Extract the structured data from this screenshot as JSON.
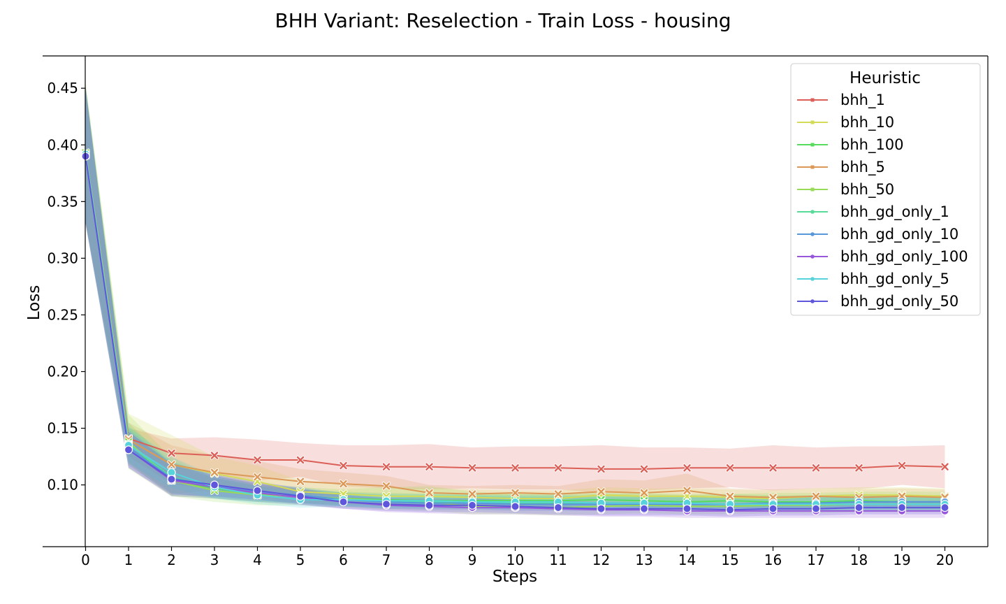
{
  "chart_data": {
    "type": "line",
    "title": "BHH Variant: Reselection - Train Loss - housing",
    "xlabel": "Steps",
    "ylabel": "Loss",
    "x": [
      0,
      1,
      2,
      3,
      4,
      5,
      6,
      7,
      8,
      9,
      10,
      11,
      12,
      13,
      14,
      15,
      16,
      17,
      18,
      19,
      20
    ],
    "xlim": [
      -1,
      21.0
    ],
    "ylim": [
      0.0455,
      0.4785
    ],
    "xticks": [
      0,
      1,
      2,
      3,
      4,
      5,
      6,
      7,
      8,
      9,
      10,
      11,
      12,
      13,
      14,
      15,
      16,
      17,
      18,
      19,
      20
    ],
    "yticks": [
      0.1,
      0.15,
      0.2,
      0.25,
      0.3,
      0.35,
      0.4,
      0.45
    ],
    "legend": {
      "title": "Heuristic",
      "placement": "top-right"
    },
    "grid": false,
    "series": [
      {
        "name": "bhh_1",
        "color": "#db5f57",
        "marker": "x",
        "values": [
          0.392,
          0.141,
          0.128,
          0.126,
          0.122,
          0.122,
          0.117,
          0.116,
          0.116,
          0.115,
          0.115,
          0.115,
          0.114,
          0.114,
          0.115,
          0.115,
          0.115,
          0.115,
          0.115,
          0.117,
          0.116
        ],
        "upper": [
          0.452,
          0.15,
          0.141,
          0.142,
          0.14,
          0.137,
          0.135,
          0.135,
          0.136,
          0.133,
          0.134,
          0.134,
          0.135,
          0.133,
          0.133,
          0.132,
          0.135,
          0.133,
          0.134,
          0.134,
          0.135
        ],
        "lower": [
          0.332,
          0.132,
          0.115,
          0.11,
          0.104,
          0.107,
          0.099,
          0.097,
          0.096,
          0.097,
          0.096,
          0.096,
          0.093,
          0.095,
          0.097,
          0.098,
          0.095,
          0.097,
          0.096,
          0.1,
          0.097
        ]
      },
      {
        "name": "bhh_10",
        "color": "#d3db57",
        "marker": "x",
        "values": [
          0.393,
          0.14,
          0.118,
          0.11,
          0.103,
          0.094,
          0.092,
          0.09,
          0.09,
          0.089,
          0.088,
          0.088,
          0.091,
          0.09,
          0.09,
          0.089,
          0.088,
          0.09,
          0.091,
          0.091,
          0.09
        ],
        "upper": [
          0.453,
          0.163,
          0.144,
          0.125,
          0.117,
          0.104,
          0.101,
          0.098,
          0.097,
          0.096,
          0.095,
          0.095,
          0.098,
          0.097,
          0.097,
          0.096,
          0.095,
          0.097,
          0.098,
          0.098,
          0.097
        ],
        "lower": [
          0.333,
          0.118,
          0.092,
          0.095,
          0.089,
          0.084,
          0.083,
          0.082,
          0.083,
          0.082,
          0.081,
          0.081,
          0.084,
          0.083,
          0.083,
          0.082,
          0.081,
          0.083,
          0.084,
          0.084,
          0.083
        ]
      },
      {
        "name": "bhh_100",
        "color": "#57db5f",
        "marker": "x",
        "values": [
          0.392,
          0.137,
          0.104,
          0.097,
          0.092,
          0.09,
          0.088,
          0.087,
          0.086,
          0.086,
          0.086,
          0.086,
          0.087,
          0.086,
          0.085,
          0.086,
          0.085,
          0.085,
          0.086,
          0.085,
          0.085
        ],
        "upper": [
          0.452,
          0.155,
          0.118,
          0.106,
          0.099,
          0.096,
          0.094,
          0.093,
          0.092,
          0.092,
          0.092,
          0.092,
          0.093,
          0.092,
          0.091,
          0.092,
          0.091,
          0.091,
          0.092,
          0.091,
          0.091
        ],
        "lower": [
          0.332,
          0.119,
          0.09,
          0.088,
          0.085,
          0.084,
          0.082,
          0.081,
          0.08,
          0.08,
          0.08,
          0.08,
          0.081,
          0.08,
          0.079,
          0.08,
          0.079,
          0.079,
          0.08,
          0.079,
          0.079
        ]
      },
      {
        "name": "bhh_5",
        "color": "#db9857",
        "marker": "x",
        "values": [
          0.391,
          0.14,
          0.118,
          0.111,
          0.107,
          0.103,
          0.101,
          0.099,
          0.093,
          0.092,
          0.093,
          0.092,
          0.094,
          0.093,
          0.095,
          0.09,
          0.089,
          0.09,
          0.089,
          0.09,
          0.089
        ],
        "upper": [
          0.451,
          0.155,
          0.135,
          0.126,
          0.121,
          0.114,
          0.111,
          0.108,
          0.1,
          0.099,
          0.1,
          0.099,
          0.105,
          0.104,
          0.11,
          0.097,
          0.096,
          0.097,
          0.096,
          0.097,
          0.096
        ],
        "lower": [
          0.331,
          0.125,
          0.101,
          0.096,
          0.093,
          0.092,
          0.091,
          0.09,
          0.086,
          0.085,
          0.086,
          0.085,
          0.083,
          0.082,
          0.08,
          0.083,
          0.082,
          0.083,
          0.082,
          0.083,
          0.082
        ]
      },
      {
        "name": "bhh_50",
        "color": "#98db57",
        "marker": "x",
        "values": [
          0.393,
          0.138,
          0.104,
          0.095,
          0.091,
          0.09,
          0.088,
          0.086,
          0.085,
          0.081,
          0.081,
          0.08,
          0.081,
          0.082,
          0.081,
          0.081,
          0.082,
          0.082,
          0.083,
          0.083,
          0.083
        ],
        "upper": [
          0.455,
          0.162,
          0.124,
          0.106,
          0.1,
          0.098,
          0.096,
          0.098,
          0.099,
          0.094,
          0.092,
          0.091,
          0.092,
          0.093,
          0.092,
          0.092,
          0.093,
          0.093,
          0.094,
          0.094,
          0.094
        ],
        "lower": [
          0.331,
          0.114,
          0.09,
          0.085,
          0.082,
          0.082,
          0.08,
          0.078,
          0.077,
          0.074,
          0.074,
          0.073,
          0.074,
          0.075,
          0.074,
          0.074,
          0.075,
          0.075,
          0.076,
          0.076,
          0.076
        ]
      },
      {
        "name": "bhh_gd_only_1",
        "color": "#57db98",
        "marker": "o",
        "values": [
          0.391,
          0.136,
          0.107,
          0.098,
          0.093,
          0.09,
          0.087,
          0.085,
          0.085,
          0.085,
          0.084,
          0.084,
          0.084,
          0.084,
          0.083,
          0.083,
          0.083,
          0.083,
          0.083,
          0.083,
          0.083
        ],
        "upper": [
          0.451,
          0.152,
          0.121,
          0.108,
          0.101,
          0.097,
          0.093,
          0.091,
          0.091,
          0.091,
          0.09,
          0.09,
          0.09,
          0.09,
          0.089,
          0.089,
          0.089,
          0.089,
          0.089,
          0.089,
          0.089
        ],
        "lower": [
          0.331,
          0.12,
          0.093,
          0.088,
          0.085,
          0.083,
          0.081,
          0.079,
          0.079,
          0.079,
          0.078,
          0.078,
          0.078,
          0.078,
          0.077,
          0.077,
          0.077,
          0.077,
          0.077,
          0.077,
          0.077
        ]
      },
      {
        "name": "bhh_gd_only_10",
        "color": "#5798db",
        "marker": "o",
        "values": [
          0.39,
          0.133,
          0.106,
          0.099,
          0.094,
          0.091,
          0.087,
          0.085,
          0.084,
          0.084,
          0.083,
          0.083,
          0.083,
          0.083,
          0.083,
          0.083,
          0.084,
          0.084,
          0.085,
          0.085,
          0.085
        ],
        "upper": [
          0.45,
          0.149,
          0.12,
          0.109,
          0.102,
          0.098,
          0.093,
          0.091,
          0.09,
          0.09,
          0.089,
          0.089,
          0.089,
          0.089,
          0.089,
          0.089,
          0.09,
          0.09,
          0.091,
          0.091,
          0.091
        ],
        "lower": [
          0.33,
          0.117,
          0.092,
          0.089,
          0.086,
          0.084,
          0.081,
          0.079,
          0.078,
          0.078,
          0.077,
          0.077,
          0.077,
          0.077,
          0.077,
          0.077,
          0.078,
          0.078,
          0.079,
          0.079,
          0.079
        ]
      },
      {
        "name": "bhh_gd_only_100",
        "color": "#9857db",
        "marker": "o",
        "values": [
          0.391,
          0.131,
          0.104,
          0.098,
          0.093,
          0.089,
          0.085,
          0.082,
          0.081,
          0.08,
          0.08,
          0.079,
          0.078,
          0.078,
          0.077,
          0.077,
          0.077,
          0.077,
          0.077,
          0.077,
          0.077
        ],
        "upper": [
          0.451,
          0.147,
          0.118,
          0.108,
          0.101,
          0.096,
          0.091,
          0.088,
          0.087,
          0.086,
          0.086,
          0.085,
          0.084,
          0.084,
          0.083,
          0.083,
          0.083,
          0.083,
          0.083,
          0.083,
          0.083
        ],
        "lower": [
          0.331,
          0.115,
          0.09,
          0.088,
          0.085,
          0.082,
          0.079,
          0.076,
          0.075,
          0.074,
          0.074,
          0.073,
          0.072,
          0.072,
          0.071,
          0.071,
          0.071,
          0.071,
          0.071,
          0.071,
          0.071
        ]
      },
      {
        "name": "bhh_gd_only_5",
        "color": "#57d3db",
        "marker": "o",
        "values": [
          0.392,
          0.135,
          0.111,
          0.098,
          0.091,
          0.087,
          0.087,
          0.086,
          0.086,
          0.085,
          0.085,
          0.085,
          0.084,
          0.084,
          0.084,
          0.083,
          0.083,
          0.083,
          0.083,
          0.083,
          0.083
        ],
        "upper": [
          0.452,
          0.151,
          0.125,
          0.108,
          0.099,
          0.094,
          0.093,
          0.092,
          0.092,
          0.091,
          0.091,
          0.091,
          0.09,
          0.09,
          0.09,
          0.089,
          0.089,
          0.089,
          0.089,
          0.089,
          0.089
        ],
        "lower": [
          0.332,
          0.119,
          0.097,
          0.088,
          0.083,
          0.08,
          0.081,
          0.08,
          0.08,
          0.079,
          0.079,
          0.079,
          0.078,
          0.078,
          0.078,
          0.077,
          0.077,
          0.077,
          0.077,
          0.077,
          0.077
        ]
      },
      {
        "name": "bhh_gd_only_50",
        "color": "#5f57db",
        "marker": "o",
        "values": [
          0.39,
          0.131,
          0.105,
          0.1,
          0.095,
          0.09,
          0.085,
          0.083,
          0.082,
          0.082,
          0.081,
          0.08,
          0.079,
          0.079,
          0.079,
          0.078,
          0.079,
          0.079,
          0.08,
          0.08,
          0.08
        ],
        "upper": [
          0.45,
          0.147,
          0.119,
          0.11,
          0.103,
          0.097,
          0.091,
          0.089,
          0.088,
          0.088,
          0.087,
          0.086,
          0.085,
          0.085,
          0.085,
          0.084,
          0.085,
          0.085,
          0.086,
          0.086,
          0.086
        ],
        "lower": [
          0.33,
          0.115,
          0.091,
          0.09,
          0.087,
          0.083,
          0.079,
          0.077,
          0.076,
          0.076,
          0.075,
          0.074,
          0.073,
          0.073,
          0.073,
          0.072,
          0.073,
          0.073,
          0.074,
          0.074,
          0.074
        ]
      }
    ]
  }
}
